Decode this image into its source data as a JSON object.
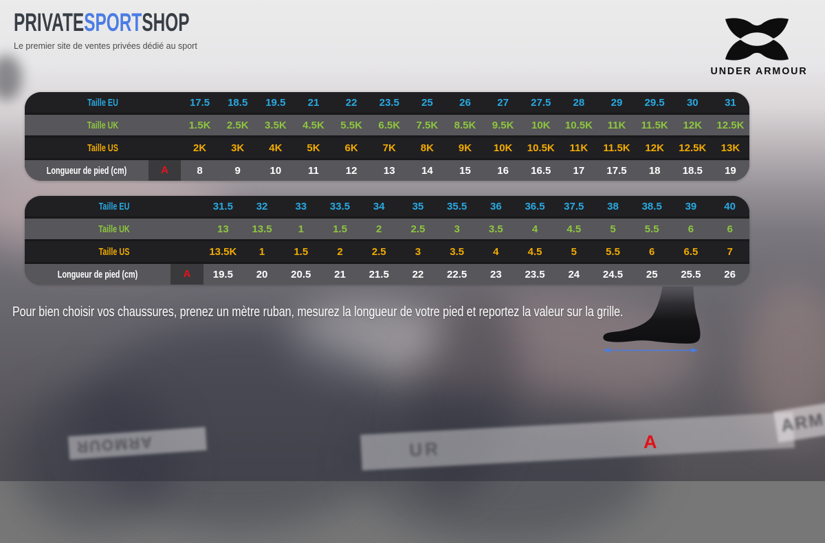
{
  "header": {
    "brand_part1": "PRIVATE",
    "brand_part2": "SPORT",
    "brand_part3": "SHOP",
    "tagline": "Le premier site de ventes privées dédié au sport",
    "ua_wordmark": "UNDER ARMOUR"
  },
  "colors": {
    "eu": "#29a9e1",
    "uk": "#8dc63f",
    "us": "#f2ab00",
    "len": "#ffffff",
    "marker": "#e8121a",
    "arrow": "#4b7de0",
    "sport_blue": "#4a7ce4",
    "brand_dark": "#383e45"
  },
  "tables": [
    {
      "rows": [
        {
          "label": "Taille EU",
          "color_key": "eu",
          "values": [
            "17.5",
            "18.5",
            "19.5",
            "21",
            "22",
            "23.5",
            "25",
            "26",
            "27",
            "27.5",
            "28",
            "29",
            "29.5",
            "30",
            "31"
          ]
        },
        {
          "label": "Taille UK",
          "color_key": "uk",
          "values": [
            "1.5K",
            "2.5K",
            "3.5K",
            "4.5K",
            "5.5K",
            "6.5K",
            "7.5K",
            "8.5K",
            "9.5K",
            "10K",
            "10.5K",
            "11K",
            "11.5K",
            "12K",
            "12.5K"
          ]
        },
        {
          "label": "Taille US",
          "color_key": "us",
          "values": [
            "2K",
            "3K",
            "4K",
            "5K",
            "6K",
            "7K",
            "8K",
            "9K",
            "10K",
            "10.5K",
            "11K",
            "11.5K",
            "12K",
            "12.5K",
            "13K"
          ]
        },
        {
          "label": "Longueur de pied (cm)",
          "color_key": "len",
          "marker": "A",
          "values": [
            "8",
            "9",
            "10",
            "11",
            "12",
            "13",
            "14",
            "15",
            "16",
            "16.5",
            "17",
            "17.5",
            "18",
            "18.5",
            "19"
          ]
        }
      ]
    },
    {
      "rows": [
        {
          "label": "Taille EU",
          "color_key": "eu",
          "values": [
            "31.5",
            "32",
            "33",
            "33.5",
            "34",
            "35",
            "35.5",
            "36",
            "36.5",
            "37.5",
            "38",
            "38.5",
            "39",
            "40"
          ]
        },
        {
          "label": "Taille UK",
          "color_key": "uk",
          "values": [
            "13",
            "13.5",
            "1",
            "1.5",
            "2",
            "2.5",
            "3",
            "3.5",
            "4",
            "4.5",
            "5",
            "5.5",
            "6",
            "6"
          ]
        },
        {
          "label": "Taille US",
          "color_key": "us",
          "values": [
            "13.5K",
            "1",
            "1.5",
            "2",
            "2.5",
            "3",
            "3.5",
            "4",
            "4.5",
            "5",
            "5.5",
            "6",
            "6.5",
            "7"
          ]
        },
        {
          "label": "Longueur de pied (cm)",
          "color_key": "len",
          "marker": "A",
          "values": [
            "19.5",
            "20",
            "20.5",
            "21",
            "21.5",
            "22",
            "22.5",
            "23",
            "23.5",
            "24",
            "24.5",
            "25",
            "25.5",
            "26"
          ]
        }
      ]
    }
  ],
  "instruction": "Pour bien choisir vos chaussures, prenez un mètre ruban, mesurez la longueur de votre pied et reportez la valeur sur la grille.",
  "diagram": {
    "measure_label": "A"
  },
  "background": {
    "banner_text_left": "ARMOUR",
    "banner_text_waist": "UR",
    "banner_text_right": "ARM"
  }
}
